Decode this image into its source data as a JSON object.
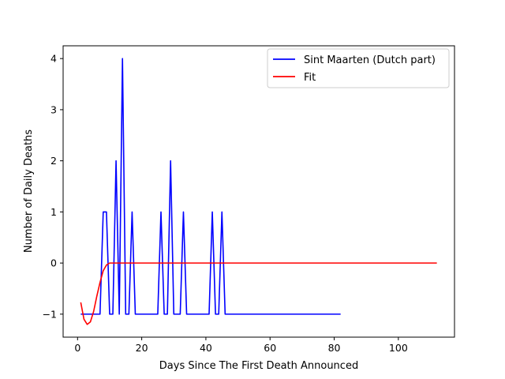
{
  "chart_data": {
    "type": "line",
    "title": "",
    "xlabel": "Days Since The First Death Announced",
    "ylabel": "Number of Daily Deaths",
    "xlim": [
      -4.5,
      117.5
    ],
    "ylim": [
      -1.45,
      4.25
    ],
    "xticks": [
      0,
      20,
      40,
      60,
      80,
      100
    ],
    "yticks": [
      -1,
      0,
      1,
      2,
      3,
      4
    ],
    "grid": false,
    "legend_position": "top-right",
    "series": [
      {
        "name": "Sint Maarten (Dutch part)",
        "color": "#0000ff",
        "x": [
          1,
          2,
          3,
          4,
          5,
          6,
          7,
          8,
          9,
          10,
          11,
          12,
          13,
          14,
          15,
          16,
          17,
          18,
          19,
          20,
          21,
          22,
          23,
          24,
          25,
          26,
          27,
          28,
          29,
          30,
          31,
          32,
          33,
          34,
          35,
          36,
          37,
          38,
          39,
          40,
          41,
          42,
          43,
          44,
          45,
          46,
          47,
          48,
          49,
          50,
          51,
          52,
          53,
          54,
          55,
          56,
          57,
          58,
          59,
          60,
          61,
          62,
          63,
          64,
          65,
          66,
          67,
          68,
          69,
          70,
          71,
          72,
          73,
          74,
          75,
          76,
          77,
          78,
          79,
          80,
          81,
          82
        ],
        "y": [
          -1,
          -1,
          -1,
          -1,
          -1,
          -1,
          -1,
          1,
          1,
          -1,
          -1,
          2,
          -1,
          4,
          -1,
          -1,
          1,
          -1,
          -1,
          -1,
          -1,
          -1,
          -1,
          -1,
          -1,
          1,
          -1,
          -1,
          2,
          -1,
          -1,
          -1,
          1,
          -1,
          -1,
          -1,
          -1,
          -1,
          -1,
          -1,
          -1,
          1,
          -1,
          -1,
          1,
          -1,
          -1,
          -1,
          -1,
          -1,
          -1,
          -1,
          -1,
          -1,
          -1,
          -1,
          -1,
          -1,
          -1,
          -1,
          -1,
          -1,
          -1,
          -1,
          -1,
          -1,
          -1,
          -1,
          -1,
          -1,
          -1,
          -1,
          -1,
          -1,
          -1,
          -1,
          -1,
          -1,
          -1,
          -1,
          -1,
          -1
        ]
      },
      {
        "name": "Fit",
        "color": "#ff0000",
        "x": [
          1,
          2,
          3,
          4,
          5,
          6,
          7,
          8,
          9,
          10,
          11,
          12,
          13,
          14,
          15,
          20,
          30,
          40,
          50,
          60,
          70,
          80,
          90,
          100,
          112
        ],
        "y": [
          -0.77,
          -1.1,
          -1.2,
          -1.15,
          -0.95,
          -0.65,
          -0.38,
          -0.15,
          -0.04,
          0,
          0,
          0,
          0,
          0,
          0,
          0,
          0,
          0,
          0,
          0,
          0,
          0,
          0,
          0,
          0
        ]
      }
    ]
  }
}
